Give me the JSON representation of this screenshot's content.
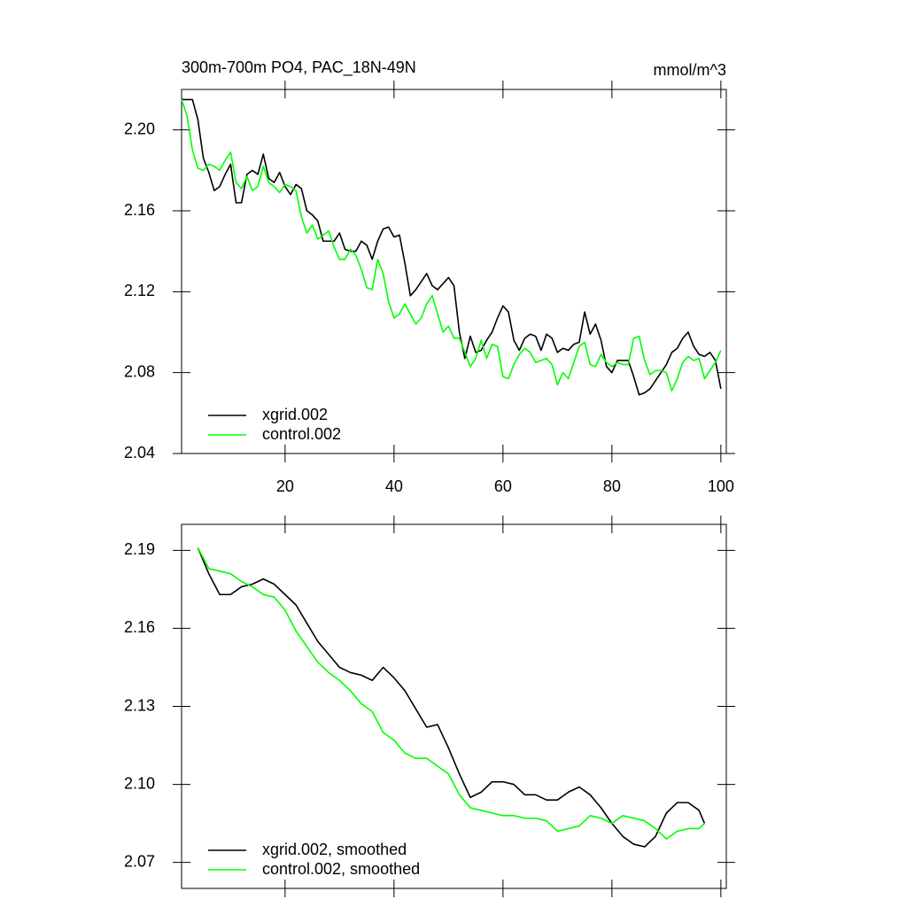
{
  "chart_data": [
    {
      "type": "line",
      "title": "300m-700m PO4, PAC_18N-49N",
      "units_label": "mmol/m^3",
      "x": [
        1,
        2,
        3,
        4,
        5,
        6,
        7,
        8,
        9,
        10,
        11,
        12,
        13,
        14,
        15,
        16,
        17,
        18,
        19,
        20,
        21,
        22,
        23,
        24,
        25,
        26,
        27,
        28,
        29,
        30,
        31,
        32,
        33,
        34,
        35,
        36,
        37,
        38,
        39,
        40,
        41,
        42,
        43,
        44,
        45,
        46,
        47,
        48,
        49,
        50,
        51,
        52,
        53,
        54,
        55,
        56,
        57,
        58,
        59,
        60,
        61,
        62,
        63,
        64,
        65,
        66,
        67,
        68,
        69,
        70,
        71,
        72,
        73,
        74,
        75,
        76,
        77,
        78,
        79,
        80,
        81,
        82,
        83,
        84,
        85,
        86,
        87,
        88,
        89,
        90,
        91,
        92,
        93,
        94,
        95,
        96,
        97,
        98,
        99,
        100
      ],
      "series": [
        {
          "name": "xgrid.002",
          "color": "#000000",
          "values": [
            2.215,
            2.215,
            2.215,
            2.205,
            2.186,
            2.179,
            2.17,
            2.172,
            2.178,
            2.183,
            2.164,
            2.164,
            2.178,
            2.18,
            2.178,
            2.188,
            2.176,
            2.174,
            2.179,
            2.172,
            2.168,
            2.173,
            2.171,
            2.16,
            2.158,
            2.155,
            2.145,
            2.145,
            2.145,
            2.149,
            2.141,
            2.14,
            2.14,
            2.145,
            2.143,
            2.136,
            2.145,
            2.151,
            2.152,
            2.147,
            2.148,
            2.134,
            2.118,
            2.121,
            2.125,
            2.129,
            2.123,
            2.121,
            2.124,
            2.127,
            2.123,
            2.1,
            2.087,
            2.098,
            2.09,
            2.091,
            2.096,
            2.1,
            2.107,
            2.113,
            2.11,
            2.096,
            2.091,
            2.097,
            2.099,
            2.098,
            2.091,
            2.099,
            2.097,
            2.09,
            2.092,
            2.091,
            2.094,
            2.095,
            2.11,
            2.099,
            2.104,
            2.096,
            2.083,
            2.08,
            2.086,
            2.086,
            2.086,
            2.078,
            2.069,
            2.07,
            2.072,
            2.076,
            2.08,
            2.084,
            2.09,
            2.092,
            2.097,
            2.1,
            2.093,
            2.089,
            2.088,
            2.09,
            2.086,
            2.072
          ]
        },
        {
          "name": "control.002",
          "color": "#00ff00",
          "values": [
            2.215,
            2.207,
            2.19,
            2.181,
            2.18,
            2.183,
            2.182,
            2.18,
            2.185,
            2.189,
            2.174,
            2.171,
            2.177,
            2.17,
            2.172,
            2.182,
            2.174,
            2.172,
            2.169,
            2.173,
            2.172,
            2.17,
            2.157,
            2.149,
            2.153,
            2.146,
            2.148,
            2.15,
            2.142,
            2.136,
            2.136,
            2.141,
            2.138,
            2.131,
            2.122,
            2.121,
            2.136,
            2.129,
            2.115,
            2.107,
            2.109,
            2.114,
            2.109,
            2.104,
            2.107,
            2.114,
            2.118,
            2.109,
            2.1,
            2.103,
            2.097,
            2.097,
            2.09,
            2.083,
            2.087,
            2.096,
            2.087,
            2.094,
            2.093,
            2.078,
            2.077,
            2.084,
            2.089,
            2.092,
            2.09,
            2.085,
            2.086,
            2.087,
            2.084,
            2.074,
            2.08,
            2.077,
            2.085,
            2.093,
            2.095,
            2.084,
            2.083,
            2.089,
            2.085,
            2.083,
            2.085,
            2.084,
            2.084,
            2.097,
            2.098,
            2.086,
            2.079,
            2.081,
            2.081,
            2.08,
            2.071,
            2.077,
            2.085,
            2.088,
            2.086,
            2.087,
            2.077,
            2.081,
            2.085,
            2.091
          ]
        }
      ],
      "xlim": [
        1,
        101
      ],
      "xticks": [
        20,
        40,
        60,
        80,
        100
      ],
      "ylim": [
        2.04,
        2.22
      ],
      "yticks": [
        2.04,
        2.08,
        2.12,
        2.16,
        {
          "value": 2.2,
          "label": "2.20"
        }
      ],
      "legend": "lower left"
    },
    {
      "type": "line",
      "x": [
        4,
        6,
        8,
        10,
        12,
        14,
        16,
        18,
        20,
        22,
        24,
        26,
        28,
        30,
        32,
        34,
        36,
        38,
        40,
        42,
        44,
        46,
        48,
        50,
        52,
        54,
        56,
        58,
        60,
        62,
        64,
        66,
        68,
        70,
        72,
        74,
        76,
        78,
        80,
        82,
        84,
        86,
        88,
        90,
        92,
        94,
        96,
        97
      ],
      "series": [
        {
          "name": "xgrid.002, smoothed",
          "color": "#000000",
          "values": [
            2.191,
            2.181,
            2.173,
            2.173,
            2.176,
            2.177,
            2.179,
            2.177,
            2.173,
            2.169,
            2.162,
            2.155,
            2.15,
            2.145,
            2.143,
            2.142,
            2.14,
            2.145,
            2.141,
            2.136,
            2.129,
            2.122,
            2.123,
            2.114,
            2.104,
            2.095,
            2.097,
            2.101,
            2.101,
            2.1,
            2.096,
            2.096,
            2.094,
            2.094,
            2.097,
            2.099,
            2.096,
            2.091,
            2.085,
            2.08,
            2.077,
            2.076,
            2.08,
            2.089,
            2.093,
            2.093,
            2.09,
            2.085
          ]
        },
        {
          "name": "control.002, smoothed",
          "color": "#00ff00",
          "values": [
            2.191,
            2.183,
            2.182,
            2.181,
            2.178,
            2.176,
            2.173,
            2.172,
            2.167,
            2.159,
            2.153,
            2.147,
            2.143,
            2.14,
            2.136,
            2.131,
            2.128,
            2.12,
            2.117,
            2.112,
            2.11,
            2.11,
            2.107,
            2.104,
            2.096,
            2.091,
            2.09,
            2.089,
            2.088,
            2.088,
            2.087,
            2.087,
            2.086,
            2.082,
            2.083,
            2.084,
            2.088,
            2.087,
            2.085,
            2.088,
            2.087,
            2.086,
            2.083,
            2.079,
            2.082,
            2.083,
            2.083,
            2.085
          ]
        }
      ],
      "xlim": [
        1,
        101
      ],
      "ylim": [
        2.06,
        2.2
      ],
      "yticks": [
        2.07,
        {
          "value": 2.1,
          "label": "2.10"
        },
        2.13,
        2.16,
        2.19
      ],
      "legend": "lower left"
    }
  ]
}
